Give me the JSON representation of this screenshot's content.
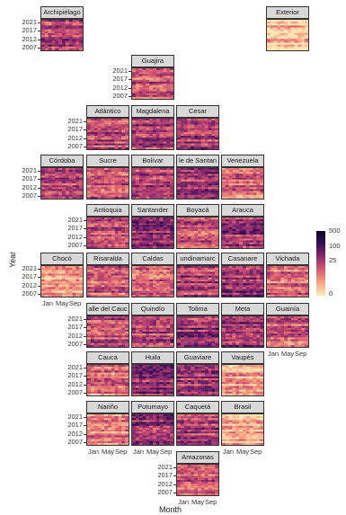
{
  "chart_data": {
    "type": "heatmap",
    "xlabel": "Month",
    "ylabel": "Year",
    "x_tick_labels": [
      "Jan",
      "May",
      "Sep"
    ],
    "y_tick_labels": [
      "2021",
      "2017",
      "2012",
      "2007"
    ],
    "legend": {
      "ticks": [
        "500",
        "100",
        "25",
        "0"
      ],
      "scale": "sqrt-like",
      "colors": [
        "#fde6b5",
        "#f6a27e",
        "#d8596f",
        "#8e2a6e",
        "#3b0f57",
        "#0d0628"
      ]
    },
    "panels": [
      {
        "name": "Archipiélago",
        "col": 0,
        "row": 0,
        "level": 0.55
      },
      {
        "name": "Exterior",
        "col": 5,
        "row": 0,
        "level": 0.08
      },
      {
        "name": "Guajira",
        "col": 2,
        "row": 1,
        "level": 0.45
      },
      {
        "name": "Atlántico",
        "col": 1,
        "row": 2,
        "level": 0.5
      },
      {
        "name": "Magdalena",
        "col": 2,
        "row": 2,
        "level": 0.5
      },
      {
        "name": "Cesar",
        "col": 3,
        "row": 2,
        "level": 0.5
      },
      {
        "name": "Córdoba",
        "col": 0,
        "row": 3,
        "level": 0.45
      },
      {
        "name": "Sucre",
        "col": 1,
        "row": 3,
        "level": 0.45
      },
      {
        "name": "Bolívar",
        "col": 2,
        "row": 3,
        "level": 0.5
      },
      {
        "name": "le de Santan",
        "col": 3,
        "row": 3,
        "level": 0.6
      },
      {
        "name": "Venezuela",
        "col": 4,
        "row": 3,
        "level": 0.35
      },
      {
        "name": "Antioquia",
        "col": 1,
        "row": 4,
        "level": 0.45
      },
      {
        "name": "Santander",
        "col": 2,
        "row": 4,
        "level": 0.6
      },
      {
        "name": "Boyacá",
        "col": 3,
        "row": 4,
        "level": 0.4
      },
      {
        "name": "Arauca",
        "col": 4,
        "row": 4,
        "level": 0.55
      },
      {
        "name": "Chocó",
        "col": 0,
        "row": 5,
        "level": 0.25
      },
      {
        "name": "Risaralda",
        "col": 1,
        "row": 5,
        "level": 0.4
      },
      {
        "name": "Caldas",
        "col": 2,
        "row": 5,
        "level": 0.4
      },
      {
        "name": "undinamarc",
        "col": 3,
        "row": 5,
        "level": 0.5
      },
      {
        "name": "Casanare",
        "col": 4,
        "row": 5,
        "level": 0.62
      },
      {
        "name": "Vichada",
        "col": 5,
        "row": 5,
        "level": 0.35
      },
      {
        "name": "alle del Cauc",
        "col": 1,
        "row": 6,
        "level": 0.45
      },
      {
        "name": "Quindío",
        "col": 2,
        "row": 6,
        "level": 0.5
      },
      {
        "name": "Tolima",
        "col": 3,
        "row": 6,
        "level": 0.55
      },
      {
        "name": "Meta",
        "col": 4,
        "row": 6,
        "level": 0.6
      },
      {
        "name": "Guainía",
        "col": 5,
        "row": 6,
        "level": 0.4
      },
      {
        "name": "Cauca",
        "col": 1,
        "row": 7,
        "level": 0.35
      },
      {
        "name": "Huila",
        "col": 2,
        "row": 7,
        "level": 0.6
      },
      {
        "name": "Guaviare",
        "col": 3,
        "row": 7,
        "level": 0.55
      },
      {
        "name": "Vaupés",
        "col": 4,
        "row": 7,
        "level": 0.2
      },
      {
        "name": "Nariño",
        "col": 1,
        "row": 8,
        "level": 0.3
      },
      {
        "name": "Putumayo",
        "col": 2,
        "row": 8,
        "level": 0.55
      },
      {
        "name": "Caquetá",
        "col": 3,
        "row": 8,
        "level": 0.5
      },
      {
        "name": "Brasil",
        "col": 4,
        "row": 8,
        "level": 0.12
      },
      {
        "name": "Amazonas",
        "col": 3,
        "row": 9,
        "level": 0.45
      }
    ]
  }
}
